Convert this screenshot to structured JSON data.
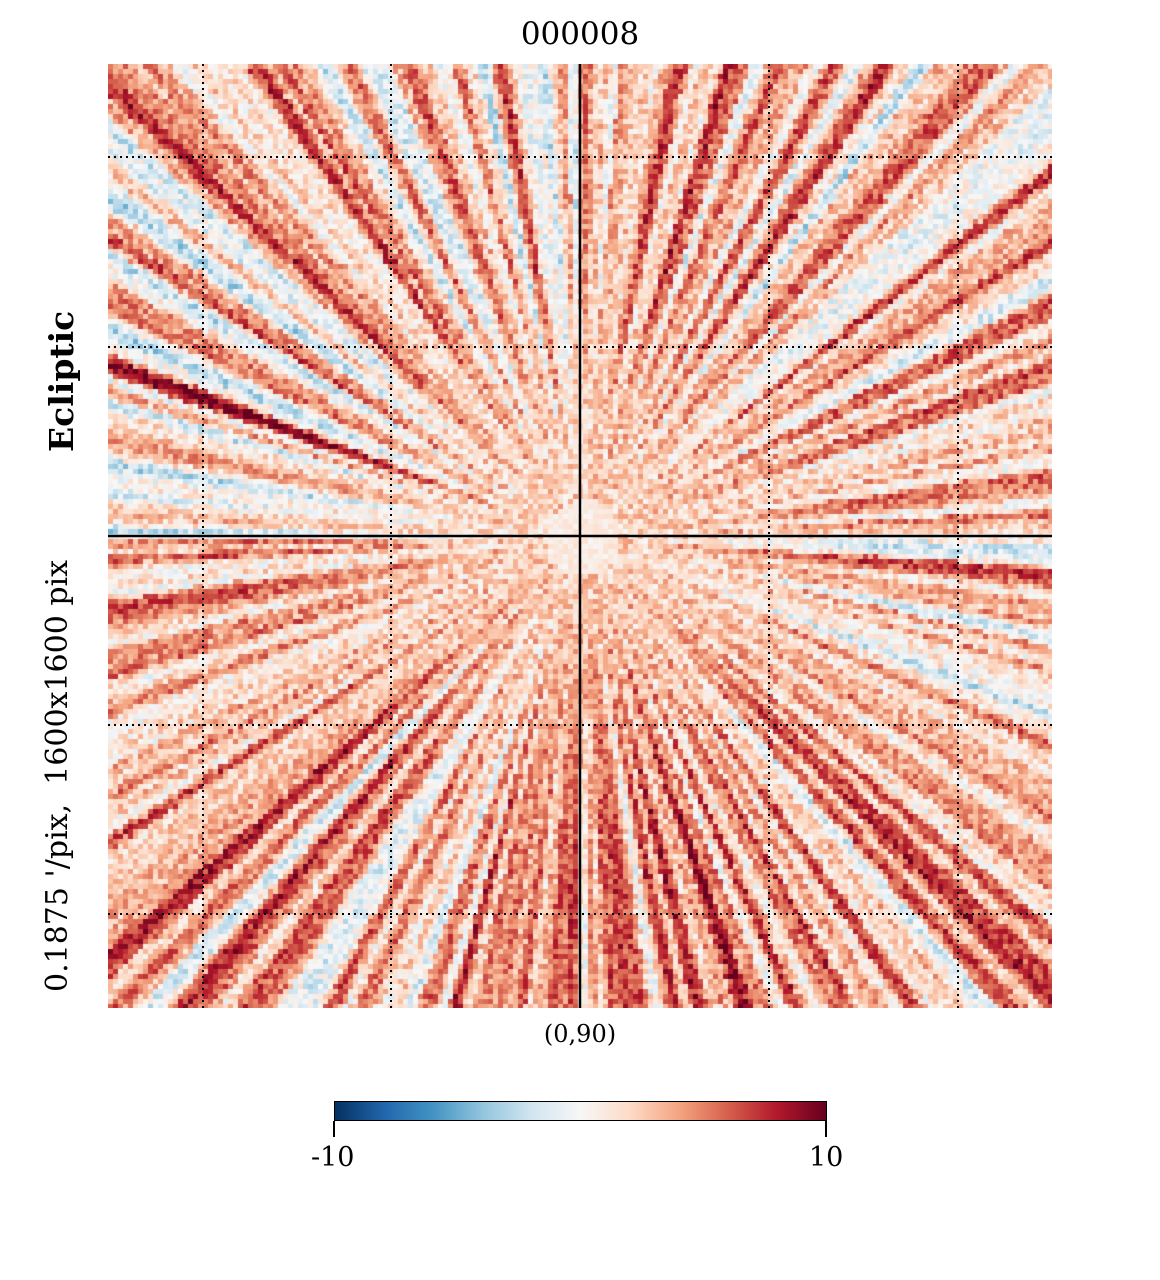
{
  "chart_data": {
    "type": "heatmap",
    "projection": "gnomonic",
    "title": "000008",
    "coord_system": "Ecliptic",
    "resolution_label": "0.1875 '/pix,  1600x1600 pix",
    "center_label": "(0,90)",
    "colormap": "RdBu_r",
    "colorbar": {
      "min": -10,
      "max": 10,
      "tick_labels": [
        "-10",
        "10"
      ]
    },
    "graticule": true,
    "colors": {
      "low": "#053061",
      "mid": "#f7f7f7",
      "high": "#67001f"
    }
  }
}
